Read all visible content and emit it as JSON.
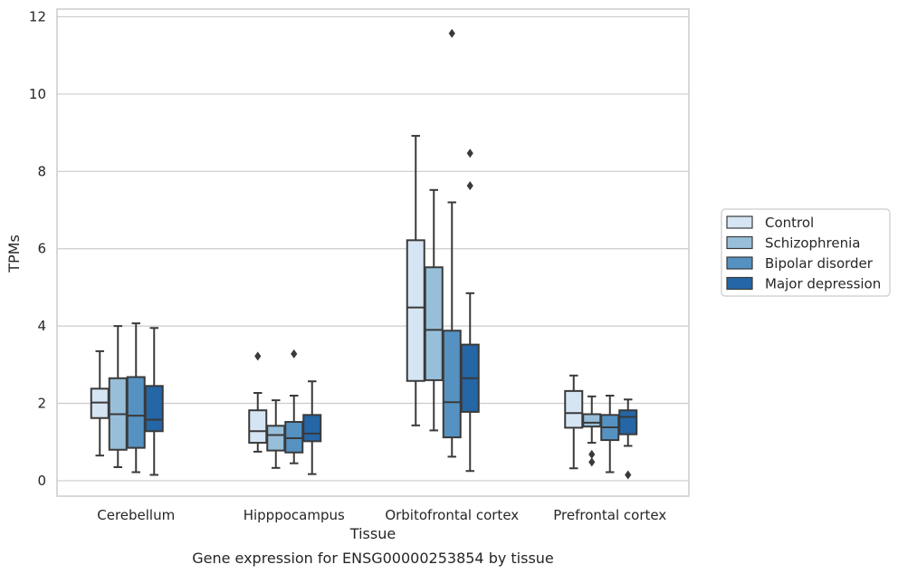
{
  "caption": "Gene expression for ENSG00000253854 by tissue",
  "colors": {
    "Control": "#d6e5f3",
    "Schizophrenia": "#98bfda",
    "Bipolar disorder": "#5592c2",
    "Major depression": "#2466a6",
    "box_edge": "#3a3a3a",
    "grid": "#cccccc",
    "frame": "#cccccc"
  },
  "chart_data": {
    "type": "box",
    "xlabel": "Tissue",
    "ylabel": "TPMs",
    "ylim": [
      -0.4,
      12.2
    ],
    "yticks": [
      0,
      2,
      4,
      6,
      8,
      10,
      12
    ],
    "grid": "horizontal",
    "legend_position": "outside-right",
    "categories": [
      "Cerebellum",
      "Hipppocampus",
      "Orbitofrontal cortex",
      "Prefrontal cortex"
    ],
    "series": [
      {
        "name": "Control",
        "boxes": [
          {
            "whislo": 0.65,
            "q1": 1.62,
            "med": 2.02,
            "q3": 2.38,
            "whishi": 3.35,
            "fliers": []
          },
          {
            "whislo": 0.75,
            "q1": 0.98,
            "med": 1.28,
            "q3": 1.82,
            "whishi": 2.27,
            "fliers": [
              3.22
            ]
          },
          {
            "whislo": 1.43,
            "q1": 2.58,
            "med": 4.48,
            "q3": 6.22,
            "whishi": 8.92,
            "fliers": []
          },
          {
            "whislo": 0.32,
            "q1": 1.37,
            "med": 1.75,
            "q3": 2.32,
            "whishi": 2.72,
            "fliers": []
          }
        ]
      },
      {
        "name": "Schizophrenia",
        "boxes": [
          {
            "whislo": 0.35,
            "q1": 0.8,
            "med": 1.72,
            "q3": 2.65,
            "whishi": 4.0,
            "fliers": []
          },
          {
            "whislo": 0.33,
            "q1": 0.78,
            "med": 1.18,
            "q3": 1.42,
            "whishi": 2.08,
            "fliers": []
          },
          {
            "whislo": 1.3,
            "q1": 2.6,
            "med": 3.9,
            "q3": 5.52,
            "whishi": 7.52,
            "fliers": []
          },
          {
            "whislo": 0.98,
            "q1": 1.4,
            "med": 1.5,
            "q3": 1.72,
            "whishi": 2.18,
            "fliers": [
              0.68,
              0.48
            ]
          }
        ]
      },
      {
        "name": "Bipolar disorder",
        "boxes": [
          {
            "whislo": 0.22,
            "q1": 0.85,
            "med": 1.68,
            "q3": 2.68,
            "whishi": 4.07,
            "fliers": []
          },
          {
            "whislo": 0.45,
            "q1": 0.73,
            "med": 1.1,
            "q3": 1.52,
            "whishi": 2.2,
            "fliers": [
              3.28
            ]
          },
          {
            "whislo": 0.62,
            "q1": 1.12,
            "med": 2.03,
            "q3": 3.88,
            "whishi": 7.2,
            "fliers": [
              11.57
            ]
          },
          {
            "whislo": 0.22,
            "q1": 1.05,
            "med": 1.38,
            "q3": 1.7,
            "whishi": 2.2,
            "fliers": []
          }
        ]
      },
      {
        "name": "Major depression",
        "boxes": [
          {
            "whislo": 0.15,
            "q1": 1.28,
            "med": 1.58,
            "q3": 2.45,
            "whishi": 3.95,
            "fliers": []
          },
          {
            "whislo": 0.17,
            "q1": 1.02,
            "med": 1.22,
            "q3": 1.7,
            "whishi": 2.57,
            "fliers": []
          },
          {
            "whislo": 0.25,
            "q1": 1.78,
            "med": 2.65,
            "q3": 3.52,
            "whishi": 4.85,
            "fliers": [
              8.47,
              7.63
            ]
          },
          {
            "whislo": 0.9,
            "q1": 1.2,
            "med": 1.65,
            "q3": 1.82,
            "whishi": 2.1,
            "fliers": [
              0.15
            ]
          }
        ]
      }
    ]
  }
}
